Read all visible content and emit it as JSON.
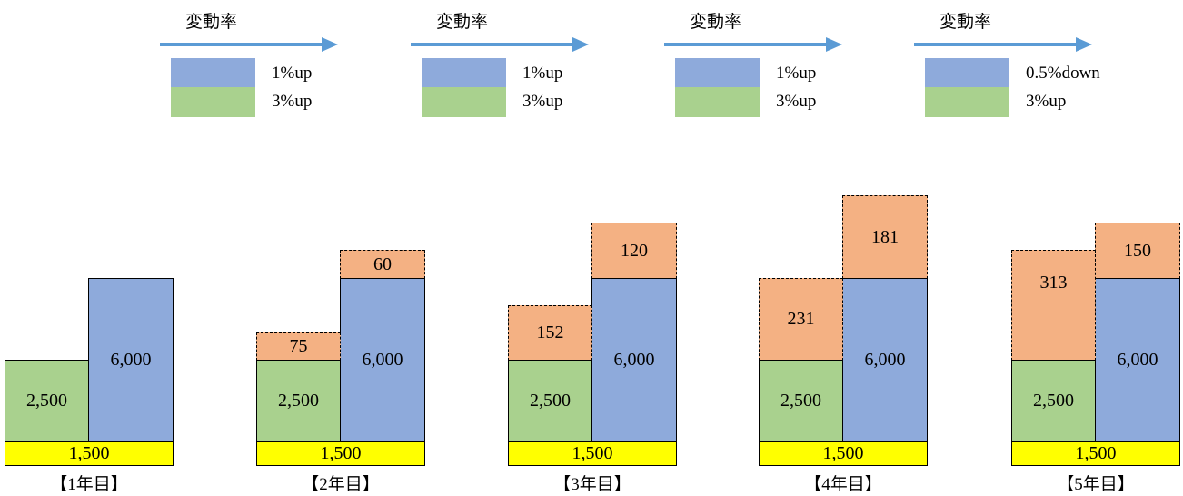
{
  "legends": [
    {
      "title": "変動率",
      "blue_rate": "1%up",
      "green_rate": "3%up"
    },
    {
      "title": "変動率",
      "blue_rate": "1%up",
      "green_rate": "3%up"
    },
    {
      "title": "変動率",
      "blue_rate": "1%up",
      "green_rate": "3%up"
    },
    {
      "title": "変動率",
      "blue_rate": "0.5%down",
      "green_rate": "3%up"
    }
  ],
  "colors": {
    "green": "#a9d18e",
    "blue": "#8eaadb",
    "orange": "#f4b183",
    "yellow": "#ffff00",
    "arrow": "#5b9bd5"
  },
  "years": [
    {
      "label": "【1年目】",
      "base": "1,500",
      "green": "2,500",
      "blue": "6,000",
      "green_increase": "",
      "blue_increase": ""
    },
    {
      "label": "【2年目】",
      "base": "1,500",
      "green": "2,500",
      "blue": "6,000",
      "green_increase": "75",
      "blue_increase": "60"
    },
    {
      "label": "【3年目】",
      "base": "1,500",
      "green": "2,500",
      "blue": "6,000",
      "green_increase": "152",
      "blue_increase": "120"
    },
    {
      "label": "【4年目】",
      "base": "1,500",
      "green": "2,500",
      "blue": "6,000",
      "green_increase": "231",
      "blue_increase": "181"
    },
    {
      "label": "【5年目】",
      "base": "1,500",
      "green": "2,500",
      "blue": "6,000",
      "green_increase": "313",
      "blue_increase": "150"
    }
  ]
}
